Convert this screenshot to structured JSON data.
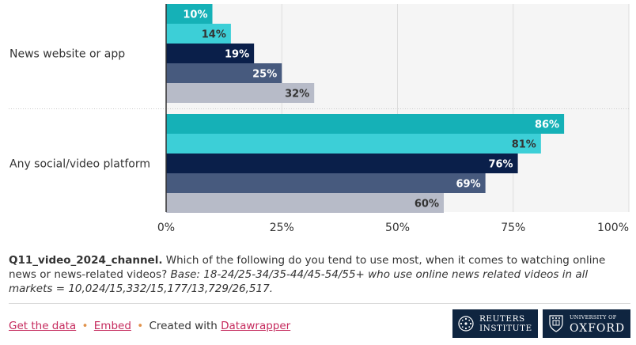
{
  "chart_data": {
    "type": "bar",
    "orientation": "horizontal",
    "categories": [
      "News website or app",
      "Any social/video platform"
    ],
    "series": [
      {
        "name": "18-24",
        "color": "#15b1b7",
        "values": [
          10,
          86
        ]
      },
      {
        "name": "25-34",
        "color": "#3ccfd7",
        "values": [
          14,
          81
        ]
      },
      {
        "name": "35-44",
        "color": "#0a1f4a",
        "values": [
          19,
          76
        ]
      },
      {
        "name": "45-54",
        "color": "#475a7e",
        "values": [
          25,
          69
        ]
      },
      {
        "name": "55+",
        "color": "#b7bbc8",
        "values": [
          32,
          60
        ]
      }
    ],
    "label_colors": [
      [
        "#ffffff",
        "#ffffff"
      ],
      [
        "#333333",
        "#333333"
      ],
      [
        "#ffffff",
        "#ffffff"
      ],
      [
        "#ffffff",
        "#ffffff"
      ],
      [
        "#333333",
        "#333333"
      ]
    ],
    "xlim": [
      0,
      100
    ],
    "ticks": [
      "0%",
      "25%",
      "50%",
      "75%",
      "100%"
    ],
    "tick_values": [
      0,
      25,
      50,
      75,
      100
    ],
    "value_suffix": "%",
    "grid": true
  },
  "notes": {
    "question_id": "Q11_video_2024_channel.",
    "question": " Which of the following do you tend to use most, when it comes to watching online news or news-related videos? ",
    "base": "Base: 18-24/25-34/35-44/45-54/55+ who use online news related videos in all markets = 10,024/15,332/15,177/13,729/26,517."
  },
  "footer": {
    "get_data": "Get the data",
    "embed": "Embed",
    "created_with": "Created with",
    "datawrapper": "Datawrapper",
    "separator": "•"
  },
  "logos": {
    "reuters_line1": "REUTERS",
    "reuters_line2": "INSTITUTE",
    "oxford_line1": "UNIVERSITY OF",
    "oxford_line2": "OXFORD"
  }
}
